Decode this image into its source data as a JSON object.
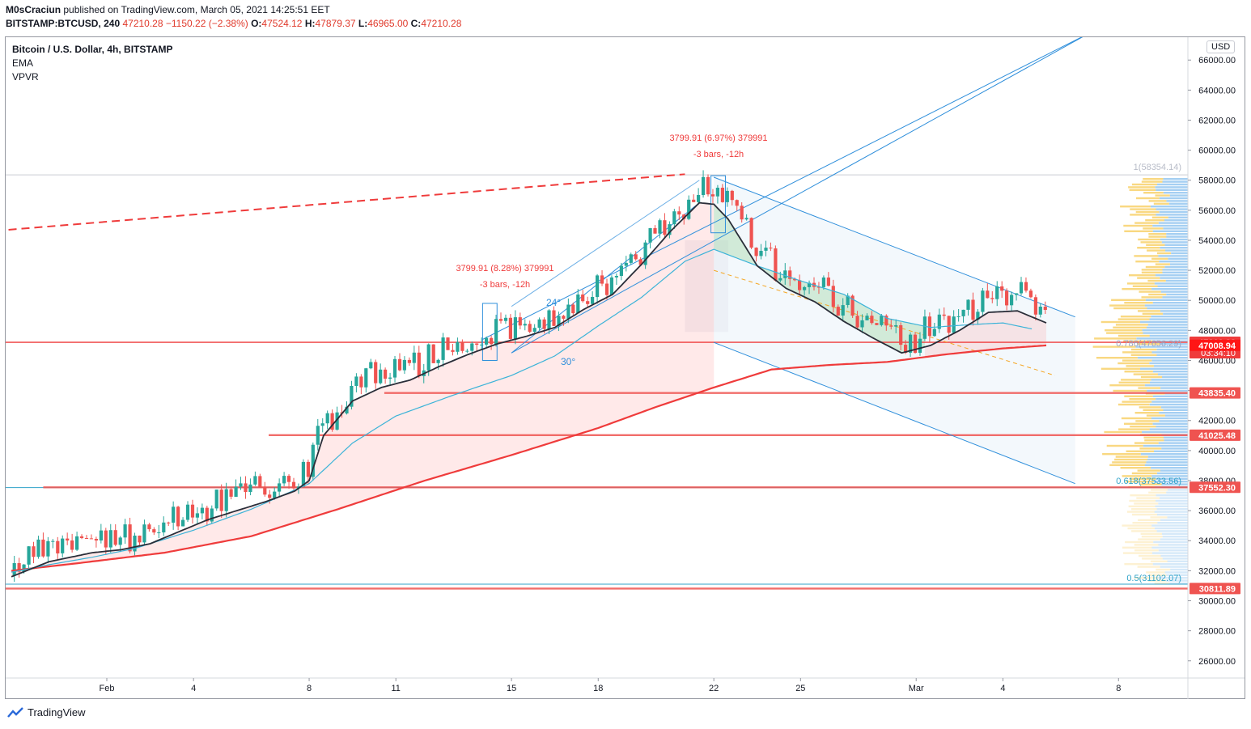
{
  "header": {
    "author": "M0sCraciun",
    "published_text": "published on TradingView.com, March 05, 2021 14:25:51 EET",
    "symbol": "BITSTAMP:BTCUSD, 240",
    "last": "47210.28",
    "change": "−1150.22 (−2.38%)",
    "o_label": "O:",
    "o": "47524.12",
    "h_label": "H:",
    "h": "47879.37",
    "l_label": "L:",
    "l": "46965.00",
    "c_label": "C:",
    "c": "47210.28"
  },
  "legend": {
    "title": "Bitcoin / U.S. Dollar, 4h, BITSTAMP",
    "ind1": "EMA",
    "ind2": "VPVR"
  },
  "currency": "USD",
  "footer": {
    "brand": "TradingView"
  },
  "annotations": {
    "measure1_line1": "3799.91 (8.28%) 379991",
    "measure1_line2": "-3 bars, -12h",
    "measure2_line1": "3799.91 (6.97%) 379991",
    "measure2_line2": "-3 bars, -12h",
    "angle1": "24°",
    "angle2": "30°",
    "fib_1": "1(58354.14)",
    "fib_786": "0.786(47656.29)",
    "fib_618": "0.618(37533.56)",
    "fib_5": "0.5(31102.07)"
  },
  "colors": {
    "up": "#26a69a",
    "down": "#ef5350",
    "ema_fast": "#2a2e39",
    "ema_mid": "#3bb3d8",
    "ema_slow": "#ef3b3b",
    "trend": "#2f8fdb",
    "vp_up": "#5ba8e8",
    "vp_down": "#f7c84b"
  },
  "chart_data": {
    "type": "candlestick",
    "title": "Bitcoin / U.S. Dollar, 4h, BITSTAMP",
    "ylim": [
      25000,
      67000
    ],
    "y_ticks": [
      "26000.00",
      "28000.00",
      "30000.00",
      "32000.00",
      "34000.00",
      "36000.00",
      "38000.00",
      "40000.00",
      "42000.00",
      "44000.00",
      "46000.00",
      "48000.00",
      "50000.00",
      "52000.00",
      "54000.00",
      "56000.00",
      "58000.00",
      "60000.00",
      "62000.00",
      "64000.00",
      "66000.00"
    ],
    "x_ticks": [
      "Feb",
      "4",
      "8",
      "11",
      "15",
      "18",
      "22",
      "25",
      "Mar",
      "4",
      "8"
    ],
    "x_tick_days": [
      1,
      4,
      8,
      11,
      15,
      18,
      22,
      25,
      29,
      32,
      36
    ],
    "x_range_days": [
      -2.4,
      38.3
    ],
    "price_levels": [
      {
        "label": "47210.28",
        "value": 47210.28,
        "color": "#ef3b3b",
        "sub": "03:34:10"
      },
      {
        "label": "47008.94",
        "value": 47008.94,
        "color": "#ff1515"
      },
      {
        "label": "43835.40",
        "value": 43835.4,
        "color": "#ef5350"
      },
      {
        "label": "41025.48",
        "value": 41025.48,
        "color": "#ef5350"
      },
      {
        "label": "37552.30",
        "value": 37552.3,
        "color": "#ef5350"
      },
      {
        "label": "30811.89",
        "value": 30811.89,
        "color": "#ef5350"
      }
    ],
    "ema_fast": [
      [
        -2.3,
        31600
      ],
      [
        -1,
        32600
      ],
      [
        0.5,
        33200
      ],
      [
        1.5,
        33400
      ],
      [
        2.5,
        33800
      ],
      [
        3.5,
        34600
      ],
      [
        4.5,
        35400
      ],
      [
        5.5,
        36000
      ],
      [
        6.5,
        36600
      ],
      [
        7.5,
        37300
      ],
      [
        8,
        38000
      ],
      [
        8.5,
        41000
      ],
      [
        9.5,
        43300
      ],
      [
        10.5,
        44200
      ],
      [
        11.5,
        44700
      ],
      [
        12.5,
        45600
      ],
      [
        13.5,
        46400
      ],
      [
        14.5,
        47100
      ],
      [
        15.5,
        47600
      ],
      [
        16.5,
        48200
      ],
      [
        17.5,
        49400
      ],
      [
        18.5,
        50400
      ],
      [
        19.5,
        52400
      ],
      [
        20.5,
        54600
      ],
      [
        21.5,
        56500
      ],
      [
        22,
        56400
      ],
      [
        22.5,
        55400
      ],
      [
        23.5,
        52300
      ],
      [
        24.5,
        50800
      ],
      [
        25.5,
        49900
      ],
      [
        26.5,
        48600
      ],
      [
        27.5,
        47500
      ],
      [
        28.5,
        46500
      ],
      [
        29.5,
        47000
      ],
      [
        30.5,
        48000
      ],
      [
        31.5,
        49200
      ],
      [
        32.5,
        49300
      ],
      [
        33.5,
        48500
      ]
    ],
    "ema_mid": [
      [
        -2.3,
        31900
      ],
      [
        -1,
        32400
      ],
      [
        0.5,
        32900
      ],
      [
        2,
        33500
      ],
      [
        4,
        34700
      ],
      [
        6,
        36100
      ],
      [
        8,
        37800
      ],
      [
        9.5,
        40500
      ],
      [
        11,
        42300
      ],
      [
        13,
        43700
      ],
      [
        15,
        45000
      ],
      [
        16.5,
        46300
      ],
      [
        18,
        48300
      ],
      [
        19.5,
        50200
      ],
      [
        21,
        52600
      ],
      [
        22,
        53400
      ],
      [
        23.5,
        52300
      ],
      [
        25,
        51300
      ],
      [
        26.5,
        50400
      ],
      [
        28,
        48800
      ],
      [
        29.5,
        48200
      ],
      [
        31,
        48400
      ],
      [
        32,
        48500
      ],
      [
        33,
        48100
      ]
    ],
    "ema_slow": [
      [
        -2.3,
        32000
      ],
      [
        0,
        32500
      ],
      [
        3,
        33200
      ],
      [
        6,
        34300
      ],
      [
        9,
        36100
      ],
      [
        12,
        38000
      ],
      [
        15,
        39700
      ],
      [
        18,
        41500
      ],
      [
        20,
        42900
      ],
      [
        22,
        44200
      ],
      [
        24,
        45400
      ],
      [
        26,
        45700
      ],
      [
        28,
        45900
      ],
      [
        30,
        46400
      ],
      [
        32,
        46800
      ],
      [
        33.5,
        47000
      ]
    ],
    "trend_lines": [
      {
        "name": "fan-line-1",
        "from": [
          15,
          46500
        ],
        "to": [
          35,
          67800
        ]
      },
      {
        "name": "fan-line-2",
        "from": [
          14,
          47400
        ],
        "to": [
          35,
          67800
        ]
      },
      {
        "name": "channel-top",
        "from": [
          22,
          58200
        ],
        "to": [
          34.5,
          48900
        ]
      },
      {
        "name": "channel-bottom",
        "from": [
          22,
          47200
        ],
        "to": [
          34.5,
          37800
        ]
      }
    ],
    "dashed_resistance": {
      "from": [
        -2.4,
        54700
      ],
      "to": [
        21,
        58400
      ]
    },
    "candles_seed": 7
  }
}
